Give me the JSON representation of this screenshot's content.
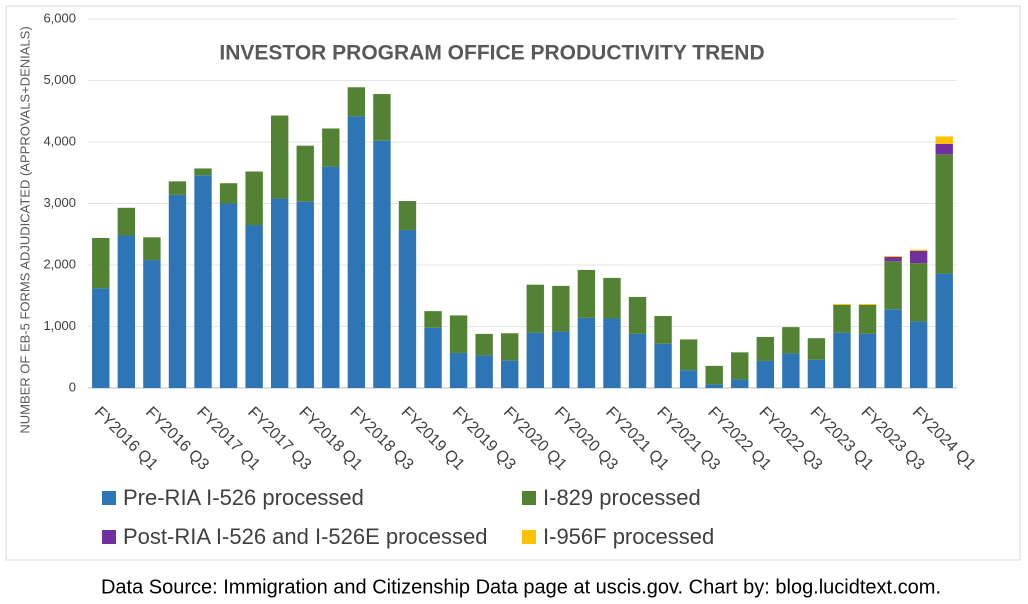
{
  "chart_data": {
    "type": "stacked_bar",
    "title": "INVESTOR PROGRAM OFFICE PRODUCTIVITY TREND",
    "y_label": "NUMBER OF EB-5 FORMS ADJUDICATED (APPROVALS+DENIALS)",
    "source": "Data Source: Immigration and Citizenship Data page at uscis.gov. Chart by: blog.lucidtext.com.",
    "categories": [
      "FY2016 Q1",
      null,
      "FY2016 Q3",
      null,
      "FY2017 Q1",
      null,
      "FY2017 Q3",
      null,
      "FY2018 Q1",
      null,
      "FY2018 Q3",
      null,
      "FY2019 Q1",
      null,
      "FY2019 Q3",
      null,
      "FY2020 Q1",
      null,
      "FY2020 Q3",
      null,
      "FY2021 Q1",
      null,
      "FY2021 Q3",
      null,
      "FY2022 Q1",
      null,
      "FY2022 Q3",
      null,
      "FY2023 Q1",
      null,
      "FY2023 Q3",
      null,
      "FY2024 Q1",
      null
    ],
    "series": [
      {
        "name": "Pre-RIA I-526 processed",
        "color": "#2e75b6",
        "values": [
          1620,
          2480,
          2080,
          3140,
          3460,
          3000,
          2650,
          3080,
          3030,
          3600,
          4420,
          4020,
          2570,
          980,
          570,
          530,
          450,
          900,
          920,
          1140,
          1130,
          880,
          720,
          290,
          60,
          140,
          440,
          560,
          460,
          900,
          880,
          1280,
          1080,
          1860
        ]
      },
      {
        "name": "I-829 processed",
        "color": "#548235",
        "values": [
          820,
          450,
          370,
          220,
          110,
          330,
          870,
          1350,
          910,
          620,
          470,
          760,
          470,
          270,
          610,
          350,
          440,
          780,
          740,
          780,
          660,
          600,
          450,
          500,
          300,
          440,
          390,
          430,
          350,
          450,
          470,
          780,
          950,
          1940
        ]
      },
      {
        "name": "Post-RIA I-526 and I-526E processed",
        "color": "#7030a0",
        "values": [
          0,
          0,
          0,
          0,
          0,
          0,
          0,
          0,
          0,
          0,
          0,
          0,
          0,
          0,
          0,
          0,
          0,
          0,
          0,
          0,
          0,
          0,
          0,
          0,
          0,
          0,
          0,
          0,
          0,
          0,
          0,
          70,
          200,
          170
        ]
      },
      {
        "name": "I-956F processed",
        "color": "#ffc000",
        "values": [
          0,
          0,
          0,
          0,
          0,
          0,
          0,
          0,
          0,
          0,
          0,
          0,
          0,
          0,
          0,
          0,
          0,
          0,
          0,
          0,
          0,
          0,
          0,
          0,
          0,
          0,
          0,
          0,
          0,
          15,
          15,
          15,
          20,
          120
        ]
      }
    ],
    "ylim": [
      0,
      6000
    ],
    "yticks": [
      0,
      {
        "value": 1000,
        "label": "1,000"
      },
      {
        "value": 2000,
        "label": "2,000"
      },
      {
        "value": 3000,
        "label": "3,000"
      },
      {
        "value": 4000,
        "label": "4,000"
      },
      {
        "value": 5000,
        "label": "5,000"
      },
      {
        "value": 6000,
        "label": "6,000"
      }
    ],
    "grid": true
  }
}
